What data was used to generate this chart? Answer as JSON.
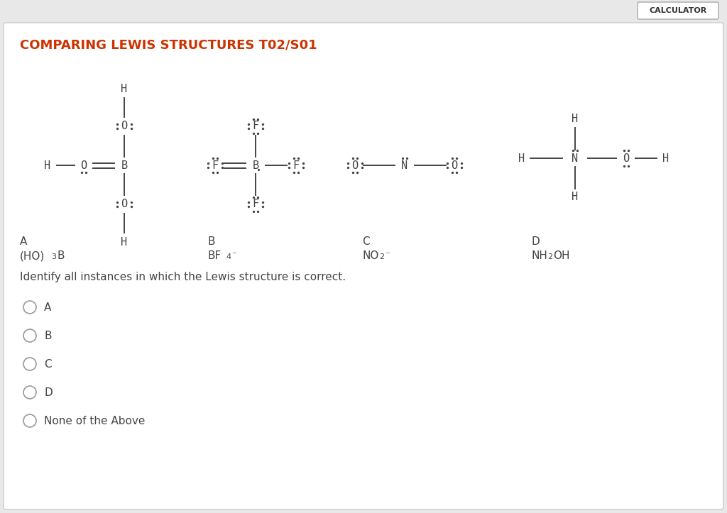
{
  "title": "COMPARING LEWIS STRUCTURES T02/S01",
  "title_color": "#cc3300",
  "bg_color": "#e8e8e8",
  "panel_bg": "#ffffff",
  "calculator_label": "CALCULATOR",
  "structure_labels": [
    "A",
    "B",
    "C",
    "D"
  ],
  "structure_names_A": "(HO)",
  "structure_names_A2": "3",
  "structure_names_A3": "B",
  "structure_names_B": "BF",
  "structure_names_B2": "4",
  "structure_names_B3": "⁻",
  "structure_names_C": "NO",
  "structure_names_C2": "2",
  "structure_names_C3": "⁻",
  "structure_names_D": "NH",
  "structure_names_D2": "2",
  "structure_names_D3": "OH",
  "question": "Identify all instances in which the Lewis structure is correct.",
  "choices": [
    "A",
    "B",
    "C",
    "D",
    "None of the Above"
  ],
  "dot_color": "#444444",
  "line_color": "#444444",
  "text_color": "#444444",
  "font_size_title": 13,
  "font_size_atom": 11,
  "font_size_label": 11,
  "font_size_choice": 11
}
